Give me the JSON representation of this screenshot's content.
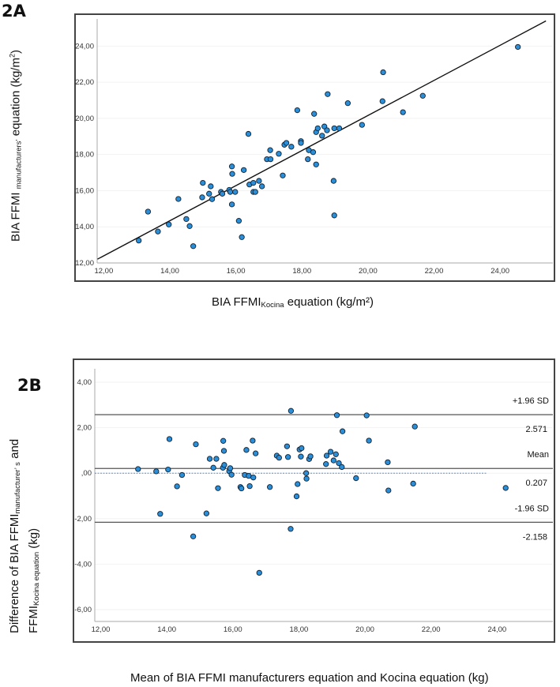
{
  "chart_data": [
    {
      "panel_label": "2A",
      "type": "scatter",
      "xlabel": {
        "main": "BIA FFMI",
        "sub": "Kocina",
        "rest": " equation (kg/m²)"
      },
      "ylabel": {
        "main": "BIA FFMI ",
        "sub": "manufacturers’",
        "rest": "  equation (kg/m",
        "sup": "2",
        "end": ")"
      },
      "xlim": [
        11.8,
        25.6
      ],
      "ylim": [
        12,
        25.5
      ],
      "xticks": [
        "12,00",
        "14,00",
        "16,00",
        "18,00",
        "20,00",
        "22,00",
        "24,00"
      ],
      "xtick_values": [
        12,
        14,
        16,
        18,
        20,
        22,
        24
      ],
      "yticks": [
        "12,00",
        "14,00",
        "16,00",
        "18,00",
        "20,00",
        "22,00",
        "24,00"
      ],
      "ytick_values": [
        12,
        14,
        16,
        18,
        20,
        22,
        24
      ],
      "grid": "horizontal faint",
      "reference_line": {
        "type": "identity",
        "from": [
          11.81,
          12.21
        ],
        "to": [
          25.39,
          25.39
        ]
      },
      "point_color": "#2a8fd8",
      "points": [
        [
          13.06,
          13.24
        ],
        [
          13.34,
          14.84
        ],
        [
          13.64,
          13.74
        ],
        [
          13.97,
          14.13
        ],
        [
          14.26,
          15.54
        ],
        [
          14.5,
          14.43
        ],
        [
          14.6,
          14.04
        ],
        [
          14.71,
          12.93
        ],
        [
          14.98,
          15.63
        ],
        [
          15.0,
          16.43
        ],
        [
          15.19,
          15.83
        ],
        [
          15.24,
          16.24
        ],
        [
          15.28,
          15.53
        ],
        [
          15.55,
          15.93
        ],
        [
          15.59,
          15.83
        ],
        [
          15.8,
          16.04
        ],
        [
          15.83,
          15.93
        ],
        [
          15.88,
          17.34
        ],
        [
          15.89,
          16.93
        ],
        [
          15.88,
          15.24
        ],
        [
          15.98,
          15.93
        ],
        [
          16.09,
          14.33
        ],
        [
          16.18,
          13.43
        ],
        [
          16.24,
          17.14
        ],
        [
          16.38,
          19.14
        ],
        [
          16.41,
          16.34
        ],
        [
          16.53,
          16.43
        ],
        [
          16.53,
          15.93
        ],
        [
          16.59,
          15.93
        ],
        [
          16.7,
          16.54
        ],
        [
          16.79,
          16.24
        ],
        [
          16.94,
          17.74
        ],
        [
          17.05,
          17.74
        ],
        [
          17.04,
          18.24
        ],
        [
          17.3,
          18.04
        ],
        [
          17.42,
          16.84
        ],
        [
          17.47,
          18.54
        ],
        [
          17.53,
          18.64
        ],
        [
          17.68,
          18.43
        ],
        [
          17.86,
          20.45
        ],
        [
          17.97,
          18.74
        ],
        [
          17.97,
          18.64
        ],
        [
          18.18,
          17.74
        ],
        [
          18.21,
          18.24
        ],
        [
          18.34,
          18.13
        ],
        [
          18.37,
          20.25
        ],
        [
          18.43,
          19.24
        ],
        [
          18.43,
          17.45
        ],
        [
          18.48,
          19.45
        ],
        [
          18.61,
          19.04
        ],
        [
          18.68,
          19.55
        ],
        [
          18.76,
          19.34
        ],
        [
          18.78,
          21.34
        ],
        [
          18.96,
          16.54
        ],
        [
          18.98,
          19.45
        ],
        [
          18.98,
          14.63
        ],
        [
          19.13,
          19.45
        ],
        [
          19.39,
          20.84
        ],
        [
          19.82,
          19.64
        ],
        [
          20.44,
          20.95
        ],
        [
          20.46,
          22.55
        ],
        [
          21.06,
          20.34
        ],
        [
          21.66,
          21.25
        ],
        [
          24.54,
          23.95
        ]
      ]
    },
    {
      "panel_label": "2B",
      "type": "scatter",
      "xlabel": "Mean of BIA FFMI manufacturers equation and Kocina equation (kg)",
      "ylabel": {
        "line1_main": "Difference of BIA FFMI",
        "line1_sub": "manufacturer’ s",
        "line1_rest": " and",
        "line2_main": "FFMI",
        "line2_sub": "Kocina equation",
        "line2_rest": " (kg)"
      },
      "xlim": [
        11.82,
        25.69
      ],
      "ylim": [
        -6.52,
        4.59
      ],
      "xticks": [
        "12,00",
        "14,00",
        "16,00",
        "18,00",
        "20,00",
        "22,00",
        "24,00"
      ],
      "xtick_values": [
        12,
        14,
        16,
        18,
        20,
        22,
        24
      ],
      "yticks": [
        "4,00",
        "2,00",
        ",00",
        "-2,00",
        "-4,00",
        "-6,00"
      ],
      "ytick_values": [
        4,
        2,
        0,
        -2,
        -4,
        -6
      ],
      "grid": "horizontal faint",
      "point_color": "#2a8fd8",
      "zero_line": {
        "y": 0,
        "x_end": 23.68,
        "style": "dotted",
        "color": "#4a90d9"
      },
      "limit_lines": [
        {
          "label": "+1.96 SD",
          "value_text": "2.571",
          "y": 2.571
        },
        {
          "label": "Mean",
          "value_text": "0.207",
          "y": 0.207
        },
        {
          "label": "-1.96 SD",
          "value_text": "-2.158",
          "y": -2.158
        }
      ],
      "points": [
        [
          13.13,
          0.18
        ],
        [
          13.68,
          0.08
        ],
        [
          13.8,
          -1.79
        ],
        [
          14.04,
          0.16
        ],
        [
          14.08,
          1.5
        ],
        [
          14.31,
          -0.58
        ],
        [
          14.46,
          -0.08
        ],
        [
          14.8,
          -2.78
        ],
        [
          14.88,
          1.27
        ],
        [
          15.2,
          -1.77
        ],
        [
          15.3,
          0.63
        ],
        [
          15.41,
          0.24
        ],
        [
          15.5,
          0.63
        ],
        [
          15.55,
          -0.66
        ],
        [
          15.7,
          0.24
        ],
        [
          15.71,
          1.42
        ],
        [
          15.73,
          0.98
        ],
        [
          15.74,
          0.36
        ],
        [
          15.89,
          0.09
        ],
        [
          15.92,
          0.22
        ],
        [
          15.96,
          -0.07
        ],
        [
          16.23,
          -0.61
        ],
        [
          16.26,
          -0.67
        ],
        [
          16.36,
          -0.08
        ],
        [
          16.41,
          1.02
        ],
        [
          16.48,
          -0.12
        ],
        [
          16.51,
          -0.57
        ],
        [
          16.6,
          1.43
        ],
        [
          16.62,
          -0.19
        ],
        [
          16.69,
          0.87
        ],
        [
          16.8,
          -4.38
        ],
        [
          17.12,
          -0.61
        ],
        [
          17.33,
          0.77
        ],
        [
          17.4,
          0.68
        ],
        [
          17.64,
          1.18
        ],
        [
          17.67,
          0.71
        ],
        [
          17.76,
          2.74
        ],
        [
          17.75,
          -2.45
        ],
        [
          17.93,
          -1.02
        ],
        [
          17.96,
          -0.48
        ],
        [
          18.02,
          1.04
        ],
        [
          18.08,
          1.1
        ],
        [
          18.06,
          0.73
        ],
        [
          18.22,
          0.0
        ],
        [
          18.23,
          -0.24
        ],
        [
          18.31,
          0.62
        ],
        [
          18.35,
          0.74
        ],
        [
          18.82,
          0.4
        ],
        [
          18.84,
          0.77
        ],
        [
          18.96,
          0.94
        ],
        [
          19.05,
          0.56
        ],
        [
          19.12,
          0.83
        ],
        [
          19.15,
          2.55
        ],
        [
          19.21,
          0.44
        ],
        [
          19.3,
          0.27
        ],
        [
          19.32,
          1.84
        ],
        [
          19.73,
          -0.22
        ],
        [
          20.05,
          2.54
        ],
        [
          20.12,
          1.43
        ],
        [
          20.69,
          0.48
        ],
        [
          20.71,
          -0.76
        ],
        [
          21.46,
          -0.46
        ],
        [
          21.51,
          2.05
        ],
        [
          24.26,
          -0.65
        ]
      ]
    }
  ]
}
